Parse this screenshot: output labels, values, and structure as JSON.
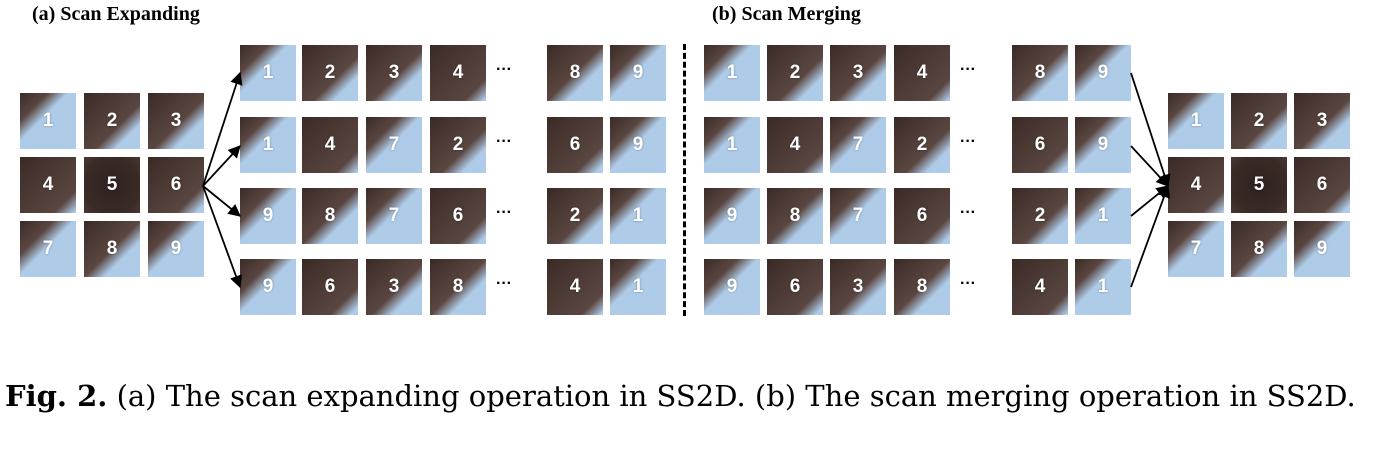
{
  "panel_a_label": "(a) Scan Expanding",
  "panel_b_label": "(b) Scan Merging",
  "ellipsis": "···",
  "caption": {
    "fig_label": "Fig. 2.",
    "text": " (a) The scan expanding operation in SS2D. (b) The scan merging operation in SS2D."
  },
  "colors": {
    "sky": "#aecbe8",
    "lesion": "#3a2a26",
    "arrow": "#000000"
  },
  "grid": {
    "labels": [
      "1",
      "2",
      "3",
      "4",
      "5",
      "6",
      "7",
      "8",
      "9"
    ],
    "lesion_level": [
      0.25,
      0.6,
      0.55,
      0.8,
      1.0,
      0.75,
      0.3,
      0.5,
      0.3
    ]
  },
  "scans": [
    {
      "start": [
        "1",
        "2",
        "3",
        "4"
      ],
      "end": [
        "8",
        "9"
      ]
    },
    {
      "start": [
        "1",
        "4",
        "7",
        "2"
      ],
      "end": [
        "6",
        "9"
      ]
    },
    {
      "start": [
        "9",
        "8",
        "7",
        "6"
      ],
      "end": [
        "2",
        "1"
      ]
    },
    {
      "start": [
        "9",
        "6",
        "3",
        "8"
      ],
      "end": [
        "4",
        "1"
      ]
    }
  ]
}
